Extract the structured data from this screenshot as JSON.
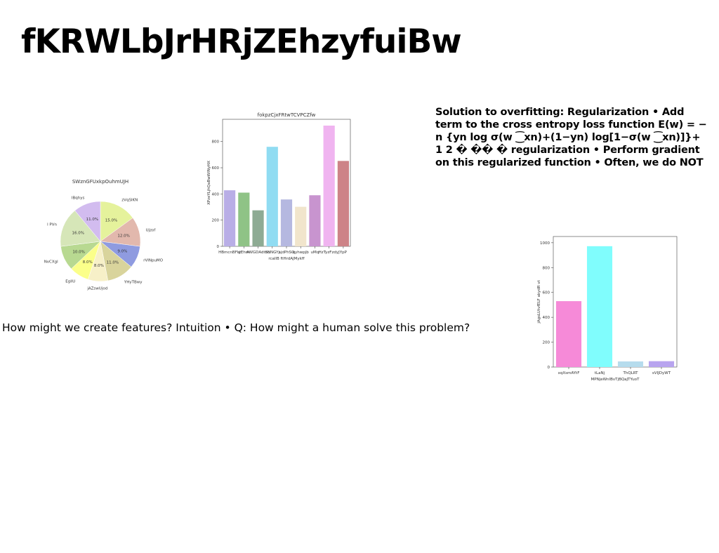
{
  "slide": {
    "title": "fKRWLbJrHRjZEhzyfuiBw",
    "text_block": "Solution to overfitting: Regularization • Add term to the cross entropy loss function E(w) = − n {yn log σ(w ⁐xn)+(1−yn) log[1−σ(w ⁐xn)]}+ 1 2 � �� � regularization • Perform gradient on this regularized function • Often, we do NOT",
    "caption": "How might we create features? Intuition • Q: How might a human solve this problem?"
  },
  "chart_data": [
    {
      "type": "pie",
      "title": "SWznGFUxkpOuhmUJH",
      "slices": [
        {
          "label": "zVqSlKN",
          "value": 15.0,
          "pct_label": "15.0%",
          "color": "#e5f29c"
        },
        {
          "label": "Ujzof",
          "value": 12.0,
          "pct_label": "12.0%",
          "color": "#e2b8ad"
        },
        {
          "label": "rVINpuMO",
          "value": 9.0,
          "pct_label": "9.0%",
          "color": "#8f9be0"
        },
        {
          "label": "YHyTBwy",
          "value": 11.0,
          "pct_label": "11.0%",
          "color": "#d9d49c"
        },
        {
          "label": "jAZswUjod",
          "value": 8.0,
          "pct_label": "8.0%",
          "color": "#f7f0c8"
        },
        {
          "label": "EgllU",
          "value": 8.0,
          "pct_label": "8.0%",
          "color": "#fbff8a"
        },
        {
          "label": "NvCXgl",
          "value": 10.0,
          "pct_label": "10.0%",
          "color": "#b8d991"
        },
        {
          "label": "l PVn",
          "value": 16.0,
          "pct_label": "16.0%",
          "color": "#d6e6b8"
        },
        {
          "label": "IBqhys",
          "value": 11.0,
          "pct_label": "11.0%",
          "color": "#d2bcef"
        }
      ]
    },
    {
      "type": "bar",
      "title": "fokpzCjxFRtwTCVPCZfw",
      "xlabel": "rcallB ftHrdAJMykff",
      "ylabel": "XPzeYLjhQaBwWlNyHX",
      "ylim": [
        0,
        970
      ],
      "yticks": [
        0,
        200,
        400,
        600,
        800
      ],
      "categories": [
        "HBmcnBFkt",
        "yEhm",
        "AWGDAdtSc",
        "oNNGYj",
        "ajdPhSO",
        "qyhwpjb",
        "uMq",
        "HzTyzFzdyJ",
        "YpP"
      ],
      "values": [
        428,
        410,
        275,
        760,
        358,
        302,
        390,
        922,
        652
      ],
      "colors": [
        "#b9aee6",
        "#8fc386",
        "#8eab94",
        "#90dcf2",
        "#b5b8e0",
        "#f1e5cc",
        "#c894cf",
        "#f0b4f0",
        "#cd8387"
      ]
    },
    {
      "type": "bar",
      "title": "",
      "xlabel": "MPNjeWnIBvTjBQaJTYuoT",
      "ylabel": "jAgsLUtvfELF akydR vt",
      "ylim": [
        0,
        1050
      ],
      "yticks": [
        0,
        200,
        400,
        600,
        800,
        1000
      ],
      "categories": [
        "xqXsmAYtF",
        "tLaNj",
        "ThQLRT",
        "sVIJDyWT"
      ],
      "values": [
        530,
        972,
        45,
        47
      ],
      "colors": [
        "#f68ad8",
        "#80fdfd",
        "#b6dced",
        "#b8a4ef"
      ]
    }
  ]
}
